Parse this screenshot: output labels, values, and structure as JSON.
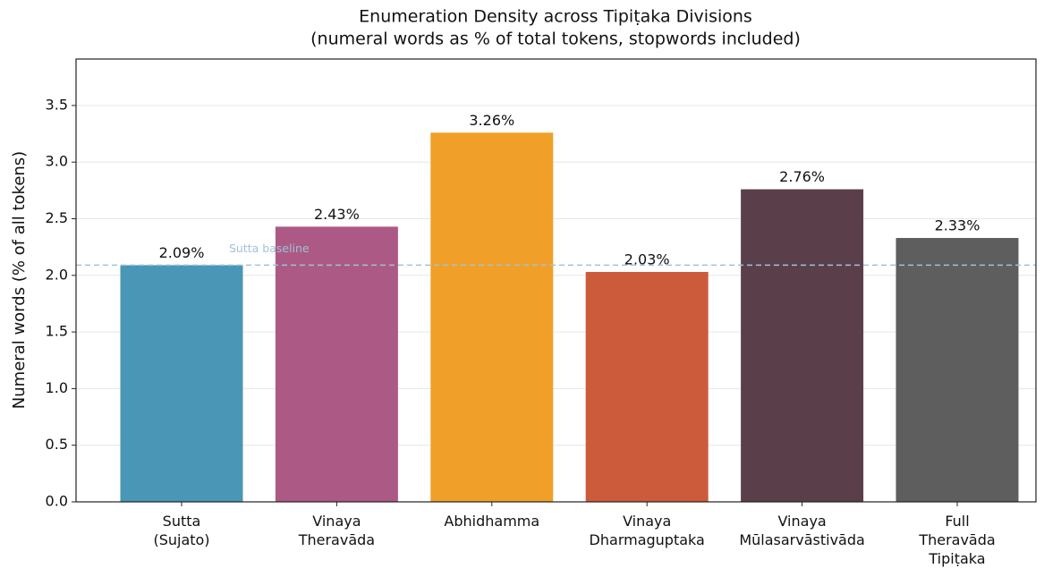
{
  "chart_data": {
    "type": "bar",
    "title": [
      "Enumeration Density across Tipiṭaka Divisions",
      "(numeral words as % of total tokens, stopwords included)"
    ],
    "ylabel": "Numeral words (% of all tokens)",
    "categories": [
      [
        "Sutta",
        "(Sujato)"
      ],
      [
        "Vinaya",
        "Theravāda"
      ],
      [
        "Abhidhamma"
      ],
      [
        "Vinaya",
        "Dharmaguptaka"
      ],
      [
        "Vinaya",
        "Mūlasarvāstivāda"
      ],
      [
        "Full",
        "Theravāda",
        "Tipiṭaka"
      ]
    ],
    "values": [
      2.09,
      2.43,
      3.26,
      2.03,
      2.76,
      2.33
    ],
    "value_labels": [
      "2.09%",
      "2.43%",
      "3.26%",
      "2.03%",
      "2.76%",
      "2.33%"
    ],
    "colors": [
      "#4a96b6",
      "#ad5985",
      "#f0a029",
      "#cc5b3c",
      "#5a3f4b",
      "#5e5e5e"
    ],
    "ylim": [
      0,
      3.91
    ],
    "yticks": [
      {
        "value": 0,
        "label": "0.0"
      },
      0.5,
      {
        "value": 1,
        "label": "1.0"
      },
      1.5,
      {
        "value": 2,
        "label": "2.0"
      },
      2.5,
      {
        "value": 3,
        "label": "3.0"
      },
      3.5
    ],
    "grid": true,
    "baseline": {
      "value": 2.09,
      "label": "Sutta baseline",
      "color": "#9fc2d6"
    }
  }
}
